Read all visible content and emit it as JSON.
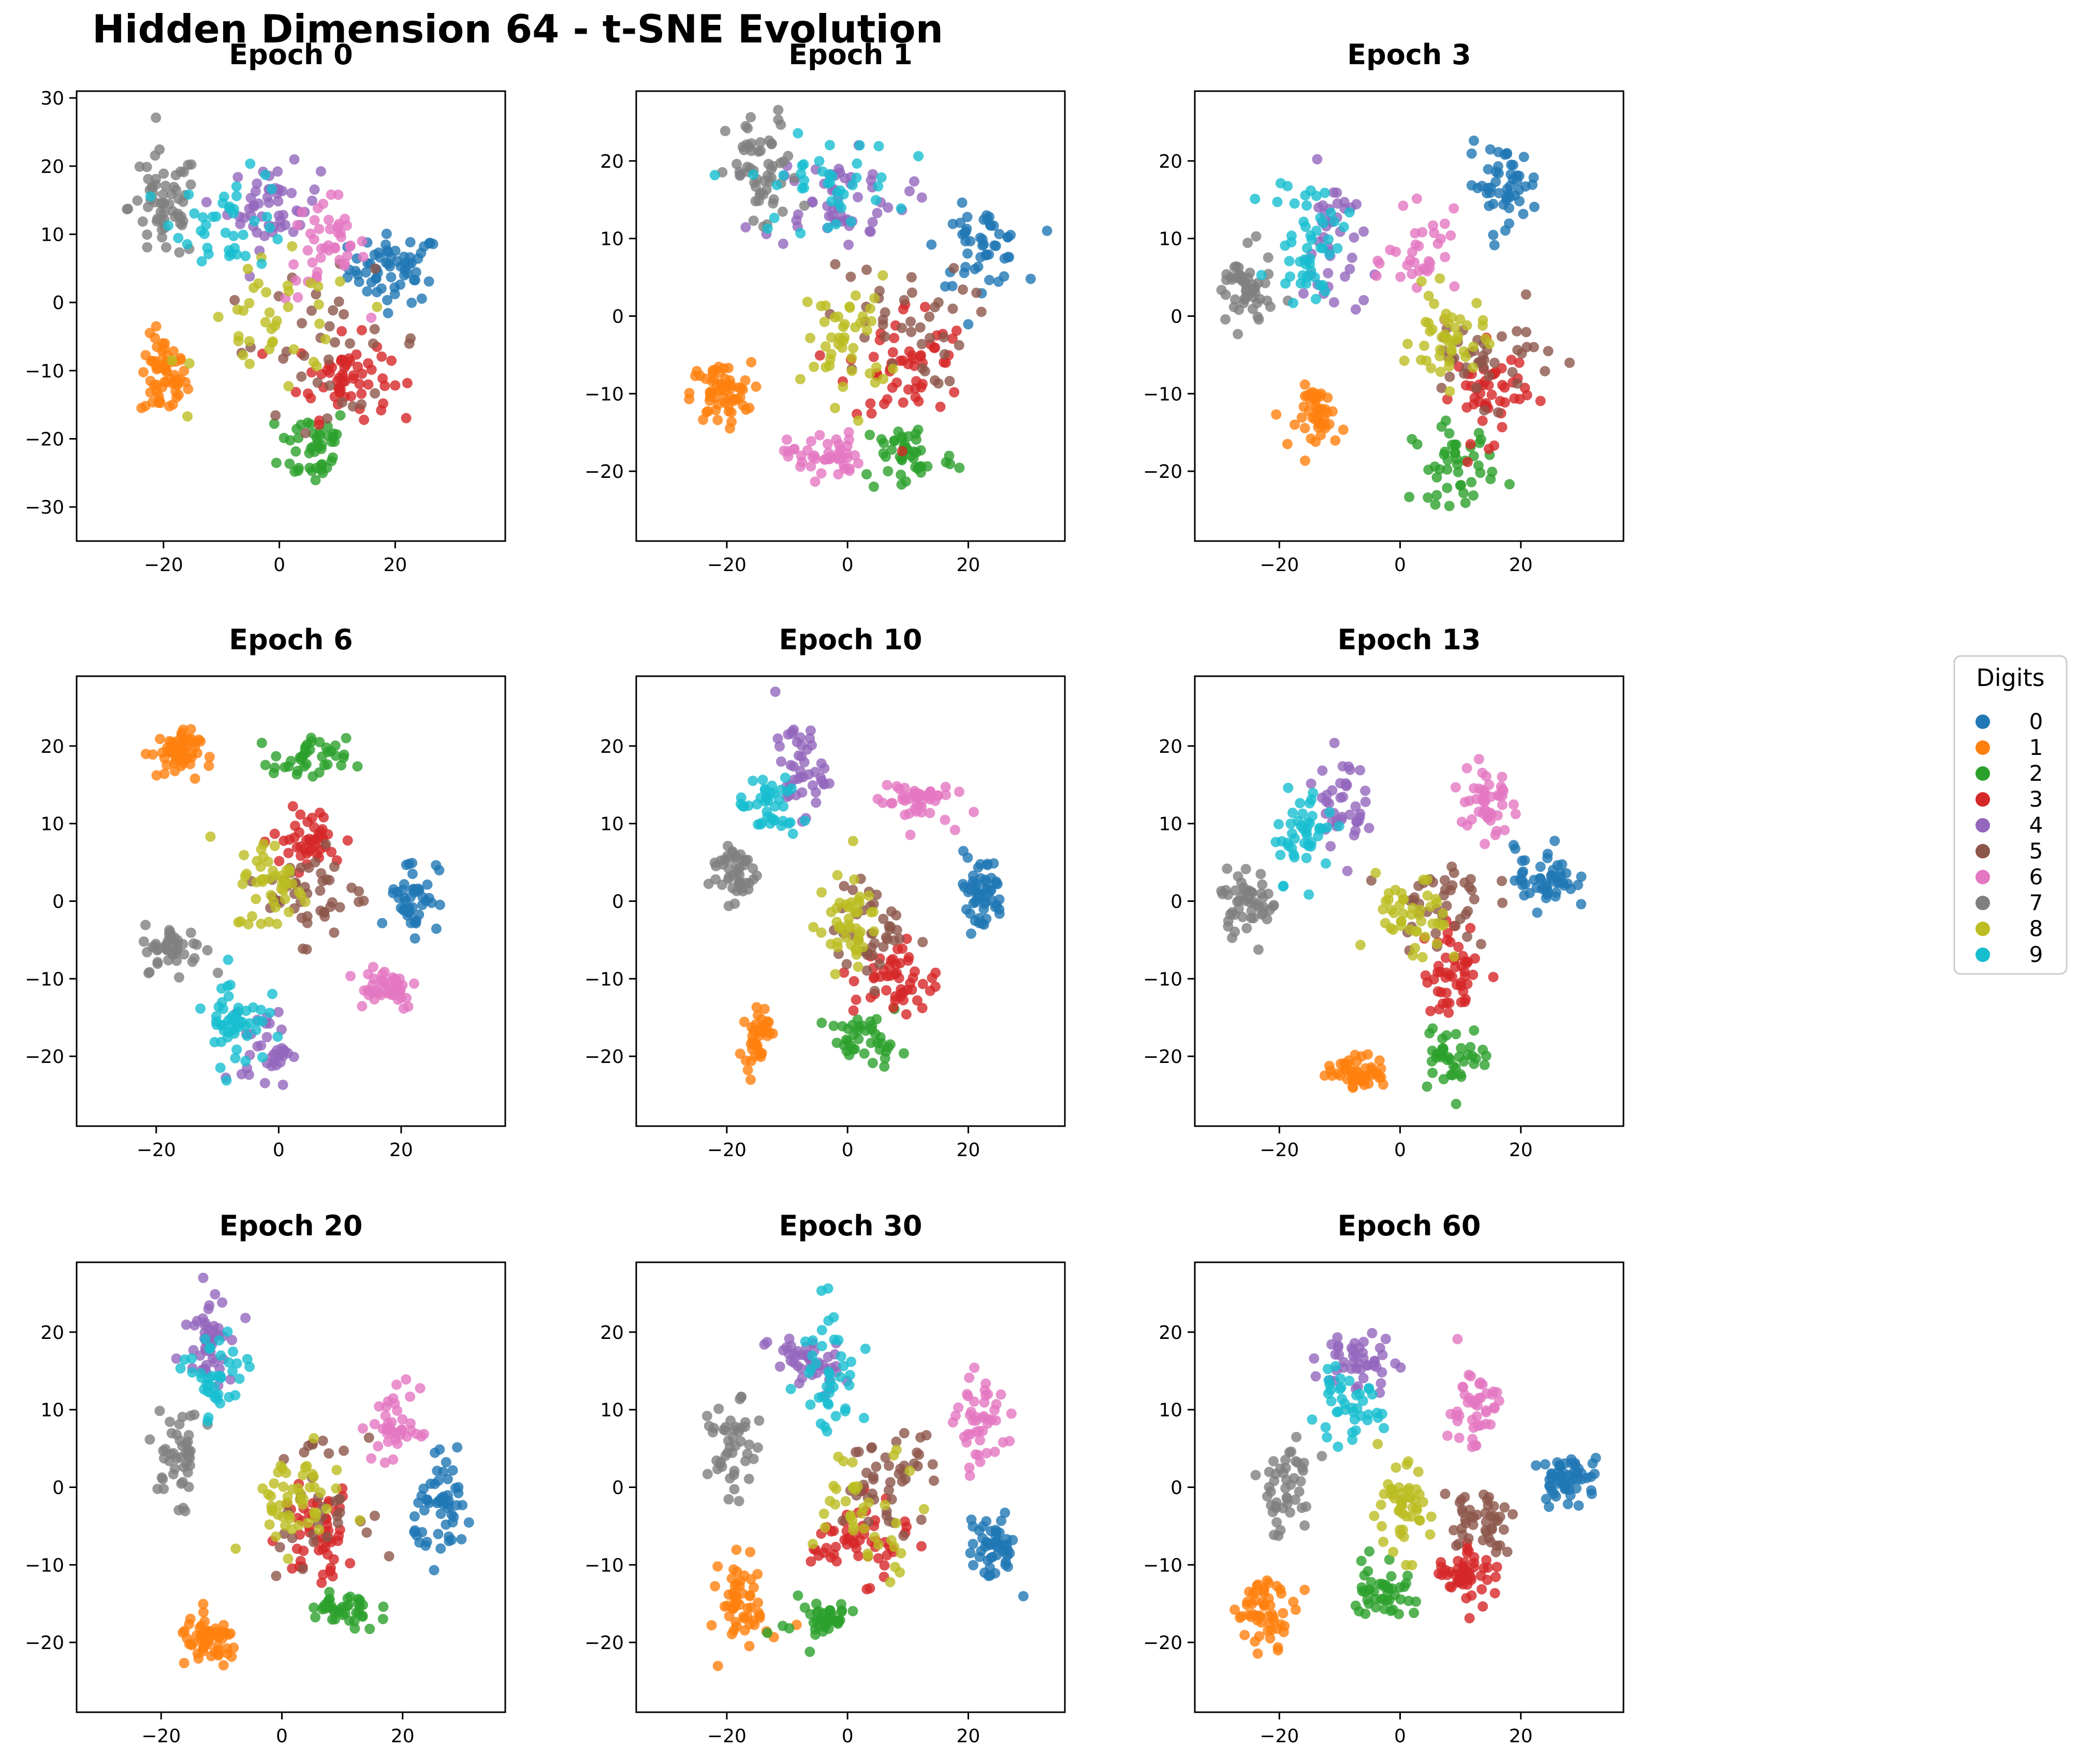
{
  "title": "Hidden Dimension 64 - t-SNE Evolution",
  "legend": {
    "title": "Digits",
    "placement": "right",
    "entries": [
      {
        "label": "0",
        "color": "#1f77b4"
      },
      {
        "label": "1",
        "color": "#ff7f0e"
      },
      {
        "label": "2",
        "color": "#2ca02c"
      },
      {
        "label": "3",
        "color": "#d62728"
      },
      {
        "label": "4",
        "color": "#9467bd"
      },
      {
        "label": "5",
        "color": "#8c564b"
      },
      {
        "label": "6",
        "color": "#e377c2"
      },
      {
        "label": "7",
        "color": "#7f7f7f"
      },
      {
        "label": "8",
        "color": "#bcbd22"
      },
      {
        "label": "9",
        "color": "#17becf"
      }
    ]
  },
  "chart_data": [
    {
      "type": "scatter",
      "title": "Epoch 0",
      "xlim": [
        -35,
        39
      ],
      "ylim": [
        -35,
        31
      ],
      "xticks": [
        -20,
        0,
        20
      ],
      "yticks": [
        -30,
        -20,
        -10,
        0,
        10,
        20,
        30
      ],
      "grid": false,
      "clusters": [
        {
          "digit": "0",
          "cx": 20,
          "cy": 5,
          "sx": 4,
          "sy": 2.5,
          "n": 60
        },
        {
          "digit": "1",
          "cx": -20,
          "cy": -11,
          "sx": 2,
          "sy": 3,
          "n": 60
        },
        {
          "digit": "2",
          "cx": 6,
          "cy": -21,
          "sx": 3,
          "sy": 3,
          "n": 45
        },
        {
          "digit": "3",
          "cx": 11,
          "cy": -11,
          "sx": 4,
          "sy": 3,
          "n": 60
        },
        {
          "digit": "4",
          "cx": -1,
          "cy": 14,
          "sx": 4,
          "sy": 3,
          "n": 50
        },
        {
          "digit": "5",
          "cx": 8,
          "cy": -6,
          "sx": 9,
          "sy": 5,
          "n": 35
        },
        {
          "digit": "6",
          "cx": 8,
          "cy": 8,
          "sx": 3.5,
          "sy": 4,
          "n": 45
        },
        {
          "digit": "7",
          "cx": -20,
          "cy": 14,
          "sx": 3,
          "sy": 4,
          "n": 60
        },
        {
          "digit": "8",
          "cx": 0,
          "cy": -4,
          "sx": 7,
          "sy": 5,
          "n": 40
        },
        {
          "digit": "9",
          "cx": -8,
          "cy": 12,
          "sx": 5,
          "sy": 3.5,
          "n": 40
        }
      ]
    },
    {
      "type": "scatter",
      "title": "Epoch 1",
      "xlim": [
        -35,
        36
      ],
      "ylim": [
        -29,
        29
      ],
      "xticks": [
        -20,
        0,
        20
      ],
      "yticks": [
        -20,
        -10,
        0,
        10,
        20
      ],
      "grid": false,
      "clusters": [
        {
          "digit": "0",
          "cx": 22,
          "cy": 9,
          "sx": 3.5,
          "sy": 2.5,
          "n": 50
        },
        {
          "digit": "1",
          "cx": -21,
          "cy": -10,
          "sx": 2.5,
          "sy": 2,
          "n": 60
        },
        {
          "digit": "2",
          "cx": 10,
          "cy": -18,
          "sx": 4,
          "sy": 2.5,
          "n": 45
        },
        {
          "digit": "3",
          "cx": 10,
          "cy": -6,
          "sx": 5,
          "sy": 4,
          "n": 55
        },
        {
          "digit": "4",
          "cx": -2,
          "cy": 15,
          "sx": 6,
          "sy": 3,
          "n": 55
        },
        {
          "digit": "5",
          "cx": 8,
          "cy": -1,
          "sx": 6,
          "sy": 4,
          "n": 40
        },
        {
          "digit": "6",
          "cx": -4,
          "cy": -18,
          "sx": 3,
          "sy": 1.5,
          "n": 45
        },
        {
          "digit": "7",
          "cx": -14,
          "cy": 18,
          "sx": 3,
          "sy": 4,
          "n": 55
        },
        {
          "digit": "8",
          "cx": 0,
          "cy": -3,
          "sx": 3.5,
          "sy": 4,
          "n": 45
        },
        {
          "digit": "9",
          "cx": -4,
          "cy": 17,
          "sx": 6,
          "sy": 3,
          "n": 40
        }
      ]
    },
    {
      "type": "scatter",
      "title": "Epoch 3",
      "xlim": [
        -34,
        37
      ],
      "ylim": [
        -29,
        29
      ],
      "xticks": [
        -20,
        0,
        20
      ],
      "yticks": [
        -20,
        -10,
        0,
        10,
        20
      ],
      "grid": false,
      "clusters": [
        {
          "digit": "0",
          "cx": 17,
          "cy": 17,
          "sx": 3,
          "sy": 2.5,
          "n": 50
        },
        {
          "digit": "1",
          "cx": -13,
          "cy": -13,
          "sx": 2,
          "sy": 2,
          "n": 45
        },
        {
          "digit": "2",
          "cx": 9,
          "cy": -19,
          "sx": 3.5,
          "sy": 2.5,
          "n": 45
        },
        {
          "digit": "3",
          "cx": 15,
          "cy": -10,
          "sx": 3,
          "sy": 3,
          "n": 50
        },
        {
          "digit": "4",
          "cx": -11,
          "cy": 9,
          "sx": 2.5,
          "sy": 5,
          "n": 40
        },
        {
          "digit": "5",
          "cx": 14,
          "cy": -5,
          "sx": 6,
          "sy": 3,
          "n": 40
        },
        {
          "digit": "6",
          "cx": 4,
          "cy": 7,
          "sx": 3,
          "sy": 3,
          "n": 35
        },
        {
          "digit": "7",
          "cx": -26,
          "cy": 3,
          "sx": 2.5,
          "sy": 2.5,
          "n": 50
        },
        {
          "digit": "8",
          "cx": 8,
          "cy": -3,
          "sx": 3,
          "sy": 3,
          "n": 45
        },
        {
          "digit": "9",
          "cx": -15,
          "cy": 10,
          "sx": 3,
          "sy": 4,
          "n": 50
        }
      ]
    },
    {
      "type": "scatter",
      "title": "Epoch 6",
      "xlim": [
        -33,
        37
      ],
      "ylim": [
        -29,
        29
      ],
      "xticks": [
        -20,
        0,
        20
      ],
      "yticks": [
        -20,
        -10,
        0,
        10,
        20
      ],
      "grid": false,
      "clusters": [
        {
          "digit": "0",
          "cx": 22,
          "cy": 1,
          "sx": 2,
          "sy": 2.5,
          "n": 45
        },
        {
          "digit": "1",
          "cx": -17,
          "cy": 19,
          "sx": 2,
          "sy": 1.5,
          "n": 55
        },
        {
          "digit": "2",
          "cx": 5,
          "cy": 18,
          "sx": 3,
          "sy": 1.5,
          "n": 40
        },
        {
          "digit": "3",
          "cx": 5,
          "cy": 8,
          "sx": 3,
          "sy": 2,
          "n": 45
        },
        {
          "digit": "4",
          "cx": -2,
          "cy": -19,
          "sx": 2,
          "sy": 2.5,
          "n": 35
        },
        {
          "digit": "5",
          "cx": 6,
          "cy": 1,
          "sx": 4,
          "sy": 3,
          "n": 45
        },
        {
          "digit": "6",
          "cx": 17,
          "cy": -11,
          "sx": 3,
          "sy": 1.5,
          "n": 45
        },
        {
          "digit": "7",
          "cx": -17,
          "cy": -6,
          "sx": 2.5,
          "sy": 1.5,
          "n": 45
        },
        {
          "digit": "8",
          "cx": -1,
          "cy": 2,
          "sx": 3,
          "sy": 3,
          "n": 45
        },
        {
          "digit": "9",
          "cx": -7,
          "cy": -15,
          "sx": 2.5,
          "sy": 3,
          "n": 50
        }
      ]
    },
    {
      "type": "scatter",
      "title": "Epoch 10",
      "xlim": [
        -35,
        36
      ],
      "ylim": [
        -29,
        29
      ],
      "xticks": [
        -20,
        0,
        20
      ],
      "yticks": [
        -20,
        -10,
        0,
        10,
        20
      ],
      "grid": false,
      "clusters": [
        {
          "digit": "0",
          "cx": 22,
          "cy": 1,
          "sx": 2,
          "sy": 2.5,
          "n": 55
        },
        {
          "digit": "1",
          "cx": -15,
          "cy": -17,
          "sx": 1,
          "sy": 2,
          "n": 40
        },
        {
          "digit": "2",
          "cx": 3,
          "cy": -18,
          "sx": 3,
          "sy": 1.5,
          "n": 40
        },
        {
          "digit": "3",
          "cx": 8,
          "cy": -10,
          "sx": 3.5,
          "sy": 2.5,
          "n": 50
        },
        {
          "digit": "4",
          "cx": -8,
          "cy": 17,
          "sx": 2,
          "sy": 3,
          "n": 45
        },
        {
          "digit": "5",
          "cx": 4,
          "cy": -4,
          "sx": 3,
          "sy": 3,
          "n": 40
        },
        {
          "digit": "6",
          "cx": 11,
          "cy": 13,
          "sx": 3,
          "sy": 1.5,
          "n": 45
        },
        {
          "digit": "7",
          "cx": -19,
          "cy": 4,
          "sx": 2,
          "sy": 2,
          "n": 45
        },
        {
          "digit": "8",
          "cx": 0,
          "cy": -3,
          "sx": 2.5,
          "sy": 3,
          "n": 45
        },
        {
          "digit": "9",
          "cx": -13,
          "cy": 12,
          "sx": 2.5,
          "sy": 2,
          "n": 40
        }
      ]
    },
    {
      "type": "scatter",
      "title": "Epoch 13",
      "xlim": [
        -34,
        37
      ],
      "ylim": [
        -29,
        29
      ],
      "xticks": [
        -20,
        0,
        20
      ],
      "yticks": [
        -20,
        -10,
        0,
        10,
        20
      ],
      "grid": false,
      "clusters": [
        {
          "digit": "0",
          "cx": 24,
          "cy": 3,
          "sx": 2.5,
          "sy": 2,
          "n": 50
        },
        {
          "digit": "1",
          "cx": -7,
          "cy": -22,
          "sx": 2.5,
          "sy": 1,
          "n": 50
        },
        {
          "digit": "2",
          "cx": 9,
          "cy": -20,
          "sx": 3,
          "sy": 2,
          "n": 40
        },
        {
          "digit": "3",
          "cx": 9,
          "cy": -9,
          "sx": 2.5,
          "sy": 3,
          "n": 50
        },
        {
          "digit": "4",
          "cx": -10,
          "cy": 13,
          "sx": 2,
          "sy": 3,
          "n": 40
        },
        {
          "digit": "5",
          "cx": 7,
          "cy": 0,
          "sx": 4,
          "sy": 3,
          "n": 40
        },
        {
          "digit": "6",
          "cx": 14,
          "cy": 13,
          "sx": 2,
          "sy": 3,
          "n": 45
        },
        {
          "digit": "7",
          "cx": -25,
          "cy": 0,
          "sx": 2.5,
          "sy": 2,
          "n": 50
        },
        {
          "digit": "8",
          "cx": 2,
          "cy": -3,
          "sx": 3,
          "sy": 3,
          "n": 45
        },
        {
          "digit": "9",
          "cx": -16,
          "cy": 9,
          "sx": 2.5,
          "sy": 3,
          "n": 45
        }
      ]
    },
    {
      "type": "scatter",
      "title": "Epoch 20",
      "xlim": [
        -34,
        37
      ],
      "ylim": [
        -29,
        29
      ],
      "xticks": [
        -20,
        0,
        20
      ],
      "yticks": [
        -20,
        -10,
        0,
        10,
        20
      ],
      "grid": false,
      "clusters": [
        {
          "digit": "0",
          "cx": 27,
          "cy": -3,
          "sx": 2.5,
          "sy": 3,
          "n": 55
        },
        {
          "digit": "1",
          "cx": -12,
          "cy": -20,
          "sx": 2.5,
          "sy": 1.5,
          "n": 55
        },
        {
          "digit": "2",
          "cx": 10,
          "cy": -16,
          "sx": 3,
          "sy": 1.5,
          "n": 40
        },
        {
          "digit": "3",
          "cx": 6,
          "cy": -6,
          "sx": 3,
          "sy": 3,
          "n": 50
        },
        {
          "digit": "4",
          "cx": -12,
          "cy": 20,
          "sx": 2,
          "sy": 3,
          "n": 45
        },
        {
          "digit": "5",
          "cx": 5,
          "cy": -2,
          "sx": 4,
          "sy": 4,
          "n": 35
        },
        {
          "digit": "6",
          "cx": 19,
          "cy": 8,
          "sx": 2,
          "sy": 2.5,
          "n": 40
        },
        {
          "digit": "7",
          "cx": -17,
          "cy": 4,
          "sx": 2,
          "sy": 3,
          "n": 45
        },
        {
          "digit": "8",
          "cx": 2,
          "cy": -2,
          "sx": 4,
          "sy": 3,
          "n": 50
        },
        {
          "digit": "9",
          "cx": -11,
          "cy": 14,
          "sx": 2.5,
          "sy": 3,
          "n": 40
        }
      ]
    },
    {
      "type": "scatter",
      "title": "Epoch 30",
      "xlim": [
        -35,
        36
      ],
      "ylim": [
        -29,
        29
      ],
      "xticks": [
        -20,
        0,
        20
      ],
      "yticks": [
        -20,
        -10,
        0,
        10,
        20
      ],
      "grid": false,
      "clusters": [
        {
          "digit": "0",
          "cx": 24,
          "cy": -8,
          "sx": 2,
          "sy": 2,
          "n": 50
        },
        {
          "digit": "1",
          "cx": -17,
          "cy": -15,
          "sx": 2,
          "sy": 3,
          "n": 55
        },
        {
          "digit": "2",
          "cx": -5,
          "cy": -17,
          "sx": 3,
          "sy": 1.5,
          "n": 40
        },
        {
          "digit": "3",
          "cx": 2,
          "cy": -7,
          "sx": 4,
          "sy": 2.5,
          "n": 55
        },
        {
          "digit": "4",
          "cx": -7,
          "cy": 16,
          "sx": 3,
          "sy": 2,
          "n": 45
        },
        {
          "digit": "5",
          "cx": 7,
          "cy": 1,
          "sx": 4,
          "sy": 3,
          "n": 45
        },
        {
          "digit": "6",
          "cx": 22,
          "cy": 8,
          "sx": 2,
          "sy": 3,
          "n": 45
        },
        {
          "digit": "7",
          "cx": -19,
          "cy": 5,
          "sx": 2,
          "sy": 3,
          "n": 45
        },
        {
          "digit": "8",
          "cx": 3,
          "cy": -3,
          "sx": 5,
          "sy": 4,
          "n": 40
        },
        {
          "digit": "9",
          "cx": -3,
          "cy": 16,
          "sx": 2.5,
          "sy": 5,
          "n": 40
        }
      ]
    },
    {
      "type": "scatter",
      "title": "Epoch 60",
      "xlim": [
        -34,
        37
      ],
      "ylim": [
        -29,
        29
      ],
      "xticks": [
        -20,
        0,
        20
      ],
      "yticks": [
        -20,
        -10,
        0,
        10,
        20
      ],
      "grid": false,
      "clusters": [
        {
          "digit": "0",
          "cx": 28,
          "cy": 1,
          "sx": 2.5,
          "sy": 1.5,
          "n": 55
        },
        {
          "digit": "1",
          "cx": -22,
          "cy": -16,
          "sx": 2.5,
          "sy": 2,
          "n": 55
        },
        {
          "digit": "2",
          "cx": -3,
          "cy": -13,
          "sx": 2.5,
          "sy": 2,
          "n": 45
        },
        {
          "digit": "3",
          "cx": 11,
          "cy": -11,
          "sx": 2.5,
          "sy": 2,
          "n": 50
        },
        {
          "digit": "4",
          "cx": -7,
          "cy": 16,
          "sx": 3,
          "sy": 2,
          "n": 45
        },
        {
          "digit": "5",
          "cx": 13,
          "cy": -4,
          "sx": 3,
          "sy": 2,
          "n": 45
        },
        {
          "digit": "6",
          "cx": 12,
          "cy": 10,
          "sx": 2,
          "sy": 3,
          "n": 45
        },
        {
          "digit": "7",
          "cx": -19,
          "cy": 0,
          "sx": 2.5,
          "sy": 3,
          "n": 45
        },
        {
          "digit": "8",
          "cx": 0,
          "cy": -3,
          "sx": 2.5,
          "sy": 3,
          "n": 50
        },
        {
          "digit": "9",
          "cx": -9,
          "cy": 10,
          "sx": 3,
          "sy": 2,
          "n": 40
        }
      ]
    }
  ]
}
